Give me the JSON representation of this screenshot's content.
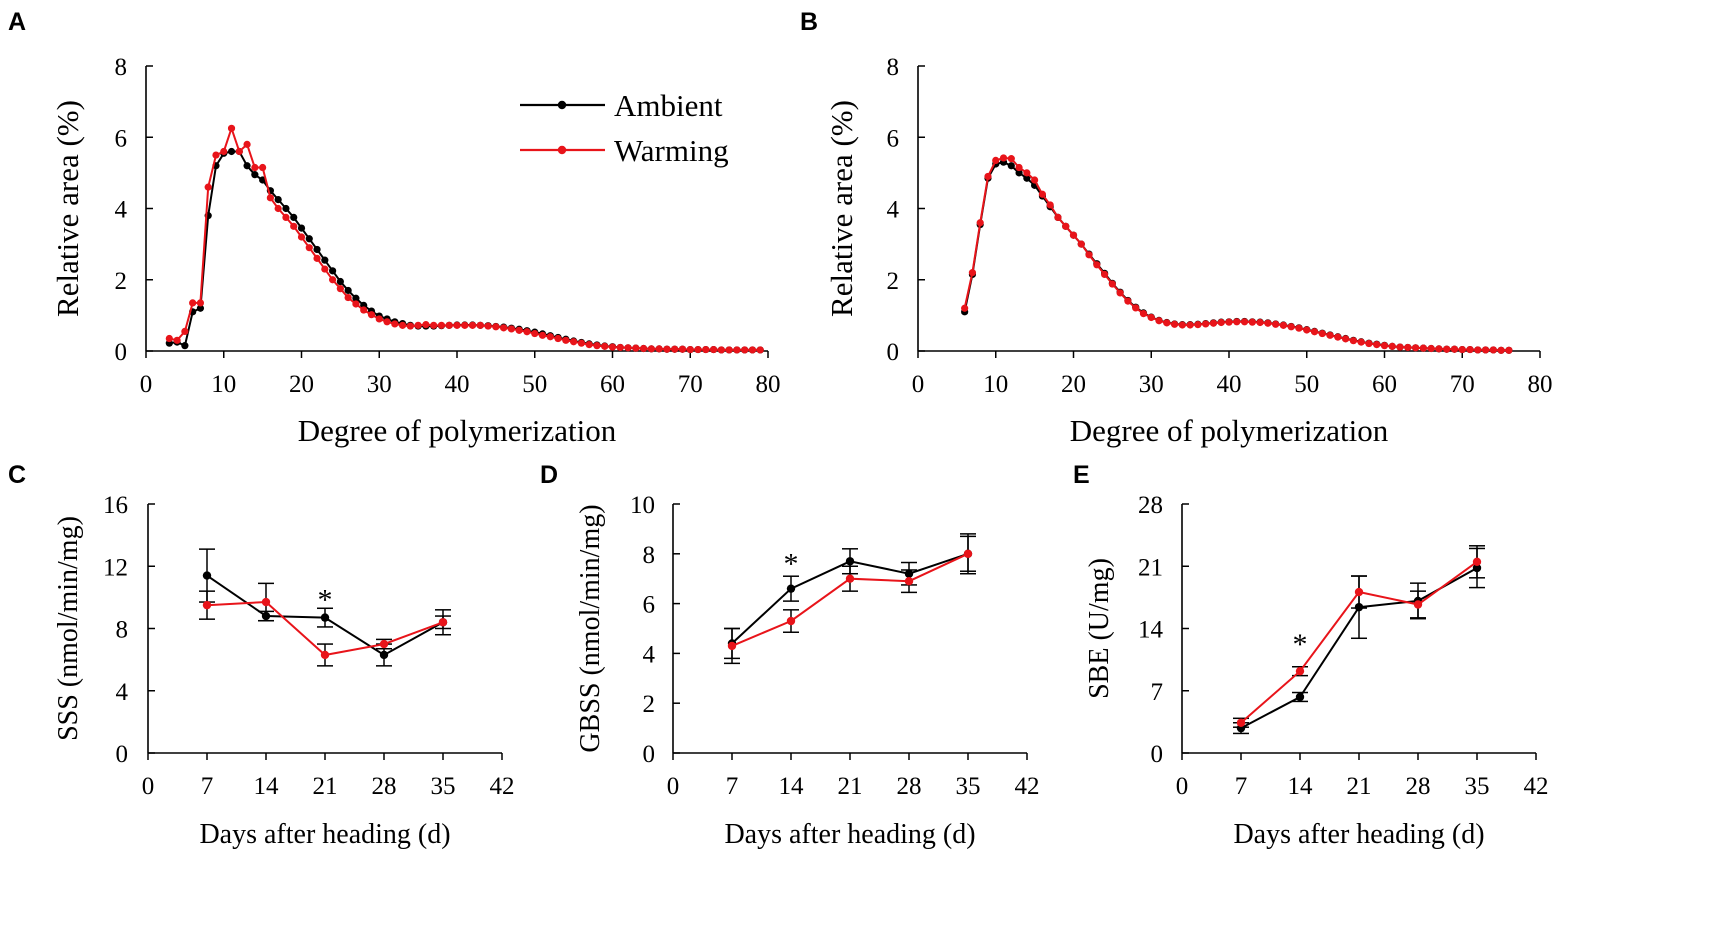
{
  "colors": {
    "ambient": "#000000",
    "warming": "#e8141a",
    "axis": "#000000"
  },
  "legend": {
    "ambient_label": "Ambient",
    "warming_label": "Warming"
  },
  "chart_data": [
    {
      "panel": "A",
      "type": "line",
      "xlabel": "Degree of polymerization",
      "ylabel": "Relative area (%)",
      "xlim": [
        0,
        80
      ],
      "ylim": [
        0,
        8
      ],
      "xticks": [
        0,
        10,
        20,
        30,
        40,
        50,
        60,
        70,
        80
      ],
      "yticks": [
        0,
        2,
        4,
        6,
        8
      ],
      "legend_position": "top-right",
      "series": [
        {
          "name": "Ambient",
          "x": [
            3,
            4,
            5,
            6,
            7,
            8,
            9,
            10,
            11,
            12,
            13,
            14,
            15,
            16,
            17,
            18,
            19,
            20,
            21,
            22,
            23,
            24,
            25,
            26,
            27,
            28,
            29,
            30,
            31,
            32,
            33,
            34,
            35,
            36,
            37,
            38,
            39,
            40,
            41,
            42,
            43,
            44,
            45,
            46,
            47,
            48,
            49,
            50,
            51,
            52,
            53,
            54,
            55,
            56,
            57,
            58,
            59,
            60,
            61,
            62,
            63,
            64,
            65,
            66,
            67,
            68,
            69,
            70,
            71,
            72,
            73,
            74,
            75,
            76,
            77,
            78,
            79
          ],
          "y": [
            0.22,
            0.25,
            0.15,
            1.1,
            1.2,
            3.8,
            5.2,
            5.55,
            5.6,
            5.6,
            5.2,
            4.95,
            4.8,
            4.5,
            4.25,
            4.0,
            3.75,
            3.45,
            3.15,
            2.85,
            2.55,
            2.25,
            1.95,
            1.7,
            1.48,
            1.28,
            1.12,
            0.98,
            0.9,
            0.82,
            0.77,
            0.72,
            0.7,
            0.7,
            0.7,
            0.71,
            0.72,
            0.73,
            0.73,
            0.73,
            0.72,
            0.71,
            0.69,
            0.67,
            0.64,
            0.61,
            0.57,
            0.53,
            0.48,
            0.43,
            0.38,
            0.33,
            0.28,
            0.24,
            0.2,
            0.17,
            0.14,
            0.12,
            0.1,
            0.09,
            0.08,
            0.07,
            0.06,
            0.06,
            0.05,
            0.05,
            0.05,
            0.04,
            0.04,
            0.04,
            0.04,
            0.03,
            0.03,
            0.03,
            0.03,
            0.03,
            0.03
          ]
        },
        {
          "name": "Warming",
          "x": [
            3,
            4,
            5,
            6,
            7,
            8,
            9,
            10,
            11,
            12,
            13,
            14,
            15,
            16,
            17,
            18,
            19,
            20,
            21,
            22,
            23,
            24,
            25,
            26,
            27,
            28,
            29,
            30,
            31,
            32,
            33,
            34,
            35,
            36,
            37,
            38,
            39,
            40,
            41,
            42,
            43,
            44,
            45,
            46,
            47,
            48,
            49,
            50,
            51,
            52,
            53,
            54,
            55,
            56,
            57,
            58,
            59,
            60,
            61,
            62,
            63,
            64,
            65,
            66,
            67,
            68,
            69,
            70,
            71,
            72,
            73,
            74,
            75,
            76,
            77,
            78,
            79
          ],
          "y": [
            0.35,
            0.3,
            0.55,
            1.35,
            1.35,
            4.6,
            5.5,
            5.6,
            6.25,
            5.6,
            5.8,
            5.15,
            5.15,
            4.3,
            4.0,
            3.75,
            3.5,
            3.2,
            2.9,
            2.6,
            2.3,
            2.0,
            1.75,
            1.5,
            1.32,
            1.15,
            1.02,
            0.9,
            0.82,
            0.76,
            0.72,
            0.7,
            0.72,
            0.74,
            0.72,
            0.72,
            0.72,
            0.72,
            0.72,
            0.72,
            0.72,
            0.7,
            0.68,
            0.65,
            0.62,
            0.58,
            0.54,
            0.49,
            0.44,
            0.4,
            0.35,
            0.3,
            0.26,
            0.22,
            0.18,
            0.15,
            0.13,
            0.11,
            0.1,
            0.09,
            0.08,
            0.07,
            0.06,
            0.06,
            0.05,
            0.05,
            0.05,
            0.04,
            0.04,
            0.04,
            0.04,
            0.03,
            0.03,
            0.03,
            0.03,
            0.03,
            0.03
          ]
        }
      ]
    },
    {
      "panel": "B",
      "type": "line",
      "xlabel": "Degree of polymerization",
      "ylabel": "Relative area (%)",
      "xlim": [
        0,
        80
      ],
      "ylim": [
        0,
        8
      ],
      "xticks": [
        0,
        10,
        20,
        30,
        40,
        50,
        60,
        70,
        80
      ],
      "yticks": [
        0,
        2,
        4,
        6,
        8
      ],
      "series": [
        {
          "name": "Ambient",
          "x": [
            6,
            7,
            8,
            9,
            10,
            11,
            12,
            13,
            14,
            15,
            16,
            17,
            18,
            19,
            20,
            21,
            22,
            23,
            24,
            25,
            26,
            27,
            28,
            29,
            30,
            31,
            32,
            33,
            34,
            35,
            36,
            37,
            38,
            39,
            40,
            41,
            42,
            43,
            44,
            45,
            46,
            47,
            48,
            49,
            50,
            51,
            52,
            53,
            54,
            55,
            56,
            57,
            58,
            59,
            60,
            61,
            62,
            63,
            64,
            65,
            66,
            67,
            68,
            69,
            70,
            71,
            72,
            73,
            74,
            75,
            76
          ],
          "y": [
            1.1,
            2.15,
            3.55,
            4.85,
            5.25,
            5.3,
            5.2,
            5.0,
            4.85,
            4.65,
            4.35,
            4.05,
            3.75,
            3.5,
            3.25,
            3.0,
            2.72,
            2.45,
            2.18,
            1.9,
            1.65,
            1.42,
            1.23,
            1.07,
            0.95,
            0.86,
            0.8,
            0.76,
            0.74,
            0.74,
            0.75,
            0.77,
            0.79,
            0.81,
            0.82,
            0.83,
            0.83,
            0.82,
            0.81,
            0.79,
            0.76,
            0.73,
            0.69,
            0.65,
            0.6,
            0.55,
            0.5,
            0.45,
            0.4,
            0.35,
            0.3,
            0.26,
            0.22,
            0.19,
            0.16,
            0.13,
            0.11,
            0.1,
            0.09,
            0.08,
            0.07,
            0.06,
            0.05,
            0.05,
            0.04,
            0.04,
            0.03,
            0.03,
            0.03,
            0.02,
            0.02
          ]
        },
        {
          "name": "Warming",
          "x": [
            6,
            7,
            8,
            9,
            10,
            11,
            12,
            13,
            14,
            15,
            16,
            17,
            18,
            19,
            20,
            21,
            22,
            23,
            24,
            25,
            26,
            27,
            28,
            29,
            30,
            31,
            32,
            33,
            34,
            35,
            36,
            37,
            38,
            39,
            40,
            41,
            42,
            43,
            44,
            45,
            46,
            47,
            48,
            49,
            50,
            51,
            52,
            53,
            54,
            55,
            56,
            57,
            58,
            59,
            60,
            61,
            62,
            63,
            64,
            65,
            66,
            67,
            68,
            69,
            70,
            71,
            72,
            73,
            74,
            75,
            76
          ],
          "y": [
            1.2,
            2.2,
            3.6,
            4.9,
            5.35,
            5.42,
            5.4,
            5.15,
            5.0,
            4.8,
            4.4,
            4.1,
            3.75,
            3.5,
            3.25,
            3.0,
            2.7,
            2.42,
            2.15,
            1.88,
            1.63,
            1.4,
            1.21,
            1.05,
            0.94,
            0.85,
            0.79,
            0.75,
            0.73,
            0.73,
            0.74,
            0.76,
            0.78,
            0.8,
            0.81,
            0.82,
            0.82,
            0.81,
            0.8,
            0.78,
            0.75,
            0.72,
            0.68,
            0.64,
            0.59,
            0.54,
            0.49,
            0.44,
            0.39,
            0.34,
            0.29,
            0.25,
            0.21,
            0.18,
            0.15,
            0.13,
            0.11,
            0.1,
            0.09,
            0.08,
            0.07,
            0.06,
            0.05,
            0.05,
            0.04,
            0.04,
            0.03,
            0.03,
            0.03,
            0.02,
            0.02
          ]
        }
      ]
    },
    {
      "panel": "C",
      "type": "line",
      "xlabel": "Days after heading (d)",
      "ylabel": "SSS (nmol/min/mg)",
      "xlim": [
        0,
        42
      ],
      "ylim": [
        0,
        16
      ],
      "xticks": [
        0,
        7,
        14,
        21,
        28,
        35,
        42
      ],
      "yticks": [
        0,
        4,
        8,
        12,
        16
      ],
      "annotations": [
        {
          "text": "*",
          "x": 21,
          "y": 10.0
        }
      ],
      "series": [
        {
          "name": "Ambient",
          "x": [
            7,
            14,
            21,
            28,
            35
          ],
          "y": [
            11.4,
            8.8,
            8.7,
            6.3,
            8.4
          ],
          "err": [
            1.7,
            0.3,
            0.6,
            0.7,
            0.8
          ]
        },
        {
          "name": "Warming",
          "x": [
            7,
            14,
            21,
            28,
            35
          ],
          "y": [
            9.5,
            9.7,
            6.3,
            7.0,
            8.4
          ],
          "err": [
            0.9,
            1.2,
            0.7,
            0.3,
            0.4
          ]
        }
      ]
    },
    {
      "panel": "D",
      "type": "line",
      "xlabel": "Days after heading (d)",
      "ylabel": "GBSS (nmol/min/mg)",
      "xlim": [
        0,
        42
      ],
      "ylim": [
        0,
        10
      ],
      "xticks": [
        0,
        7,
        14,
        21,
        28,
        35,
        42
      ],
      "yticks": [
        0,
        2,
        4,
        6,
        8,
        10
      ],
      "annotations": [
        {
          "text": "*",
          "x": 14,
          "y": 7.7
        }
      ],
      "series": [
        {
          "name": "Ambient",
          "x": [
            7,
            14,
            21,
            28,
            35
          ],
          "y": [
            4.4,
            6.6,
            7.7,
            7.2,
            8.0
          ],
          "err": [
            0.6,
            0.5,
            0.5,
            0.45,
            0.8
          ]
        },
        {
          "name": "Warming",
          "x": [
            7,
            14,
            21,
            28,
            35
          ],
          "y": [
            4.3,
            5.3,
            7.0,
            6.9,
            8.0
          ],
          "err": [
            0.7,
            0.45,
            0.5,
            0.45,
            0.7
          ]
        }
      ]
    },
    {
      "panel": "E",
      "type": "line",
      "xlabel": "Days after heading (d)",
      "ylabel": "SBE (U/mg)",
      "xlim": [
        0,
        42
      ],
      "ylim": [
        0,
        28
      ],
      "xticks": [
        0,
        7,
        14,
        21,
        28,
        35,
        42
      ],
      "yticks": [
        0,
        7,
        14,
        21,
        28
      ],
      "annotations": [
        {
          "text": "*",
          "x": 14,
          "y": 12.5
        }
      ],
      "series": [
        {
          "name": "Ambient",
          "x": [
            7,
            14,
            21,
            28,
            35
          ],
          "y": [
            2.8,
            6.3,
            16.4,
            17.1,
            20.8
          ],
          "err": [
            0.6,
            0.5,
            3.5,
            2.0,
            2.2
          ]
        },
        {
          "name": "Warming",
          "x": [
            7,
            14,
            21,
            28,
            35
          ],
          "y": [
            3.4,
            9.2,
            18.1,
            16.7,
            21.5
          ],
          "err": [
            0.5,
            0.5,
            1.8,
            1.5,
            1.8
          ]
        }
      ]
    }
  ]
}
